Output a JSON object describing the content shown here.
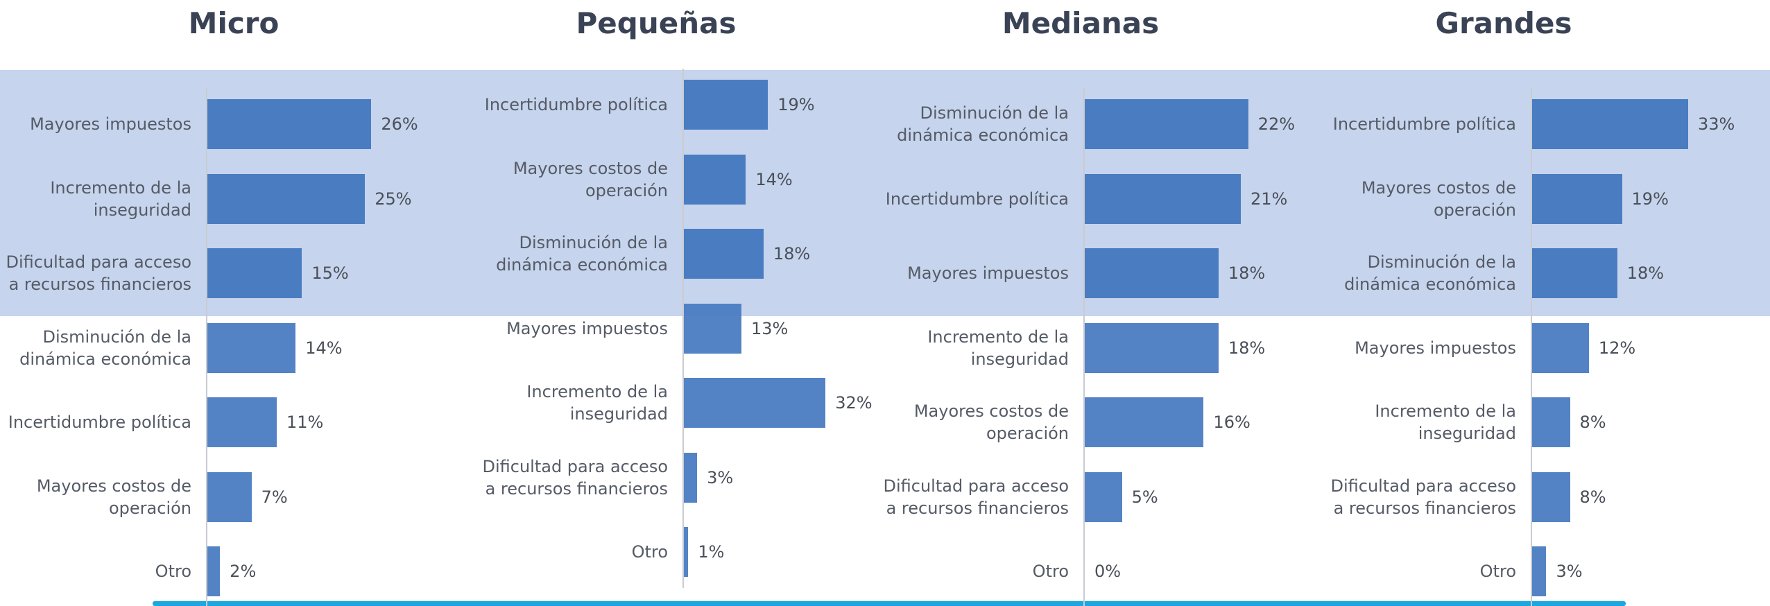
{
  "chart_data": [
    {
      "type": "bar",
      "orientation": "horizontal",
      "title": "Micro",
      "color": "#4a7cc2",
      "xlim": [
        0,
        33
      ],
      "categories": [
        "Mayores impuestos",
        "Incremento de la inseguridad",
        "Dificultad para acceso a recursos financieros",
        "Disminución de la dinámica económica",
        "Incertidumbre política",
        "Mayores costos de operación",
        "Otro"
      ],
      "values": [
        26,
        25,
        15,
        14,
        11,
        7,
        2
      ],
      "value_labels": [
        "26%",
        "25%",
        "15%",
        "14%",
        "11%",
        "7%",
        "2%"
      ]
    },
    {
      "type": "bar",
      "orientation": "horizontal",
      "title": "Pequeñas",
      "color": "#4a7cc2",
      "xlim": [
        0,
        47
      ],
      "categories": [
        "Incertidumbre política",
        "Mayores costos de operación",
        "Disminución de la dinámica económica",
        "Mayores impuestos",
        "Incremento de la inseguridad",
        "Dificultad para acceso a recursos financieros",
        "Otro"
      ],
      "values": [
        19,
        14,
        18,
        13,
        32,
        3,
        1
      ],
      "value_labels": [
        "19%",
        "14%",
        "18%",
        "13%",
        "32%",
        "3%",
        "1%"
      ]
    },
    {
      "type": "bar",
      "orientation": "horizontal",
      "title": "Medianas",
      "color": "#4a7cc2",
      "xlim": [
        0,
        28
      ],
      "categories": [
        "Disminución de la dinámica económica",
        "Incertidumbre política",
        "Mayores impuestos",
        "Incremento de la inseguridad",
        "Mayores costos de operación",
        "Dificultad para acceso a recursos financieros",
        "Otro"
      ],
      "values": [
        22,
        21,
        18,
        18,
        16,
        5,
        0
      ],
      "value_labels": [
        "22%",
        "21%",
        "18%",
        "18%",
        "16%",
        "5%",
        "0%"
      ]
    },
    {
      "type": "bar",
      "orientation": "horizontal",
      "title": "Grandes",
      "color": "#4a7cc2",
      "xlim": [
        0,
        44
      ],
      "categories": [
        "Incertidumbre política",
        "Mayores costos de operación",
        "Disminución de la dinámica económica",
        "Mayores impuestos",
        "Incremento de la inseguridad",
        "Dificultad para acceso a recursos financieros",
        "Otro"
      ],
      "values": [
        33,
        19,
        18,
        12,
        8,
        8,
        3
      ],
      "value_labels": [
        "33%",
        "19%",
        "18%",
        "12%",
        "8%",
        "8%",
        "3%"
      ]
    }
  ]
}
